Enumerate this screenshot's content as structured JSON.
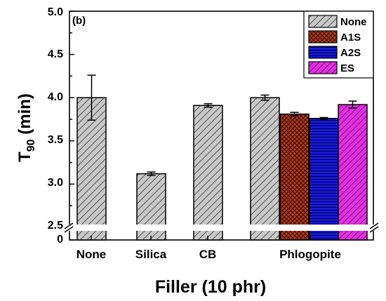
{
  "chart_data": {
    "type": "bar",
    "panel_label": "(b)",
    "xlabel": "Filler (10 phr)",
    "ylabel_main": "T",
    "ylabel_sub": "90",
    "ylabel_unit": " (min)",
    "axis_break": "//",
    "y_ticks_upper": [
      "2.5",
      "3.0",
      "3.5",
      "4.0",
      "4.5",
      "5.0"
    ],
    "y_tick_lower": "0",
    "ylim_upper": [
      2.5,
      5.0
    ],
    "legend_placement": "top-right",
    "categories": [
      "None",
      "Silica",
      "CB",
      "Phlogopite"
    ],
    "series": [
      {
        "name": "None",
        "color": "#c8c8c8",
        "pattern": "diagonal-hatch"
      },
      {
        "name": "A1S",
        "color": "#b03a1e",
        "pattern": "crosshatch"
      },
      {
        "name": "A2S",
        "color": "#1818d8",
        "pattern": "horizontal-lines"
      },
      {
        "name": "ES",
        "color": "#e030e0",
        "pattern": "diagonal-hatch"
      }
    ],
    "bars": [
      {
        "category": "None",
        "series": "None",
        "value": 4.0,
        "error": 0.26
      },
      {
        "category": "Silica",
        "series": "None",
        "value": 3.12,
        "error": 0.02
      },
      {
        "category": "CB",
        "series": "None",
        "value": 3.91,
        "error": 0.02
      },
      {
        "category": "Phlogopite",
        "series": "None",
        "value": 4.0,
        "error": 0.03
      },
      {
        "category": "Phlogopite",
        "series": "A1S",
        "value": 3.81,
        "error": 0.02
      },
      {
        "category": "Phlogopite",
        "series": "A2S",
        "value": 3.76,
        "error": 0.01
      },
      {
        "category": "Phlogopite",
        "series": "ES",
        "value": 3.92,
        "error": 0.04
      }
    ]
  }
}
